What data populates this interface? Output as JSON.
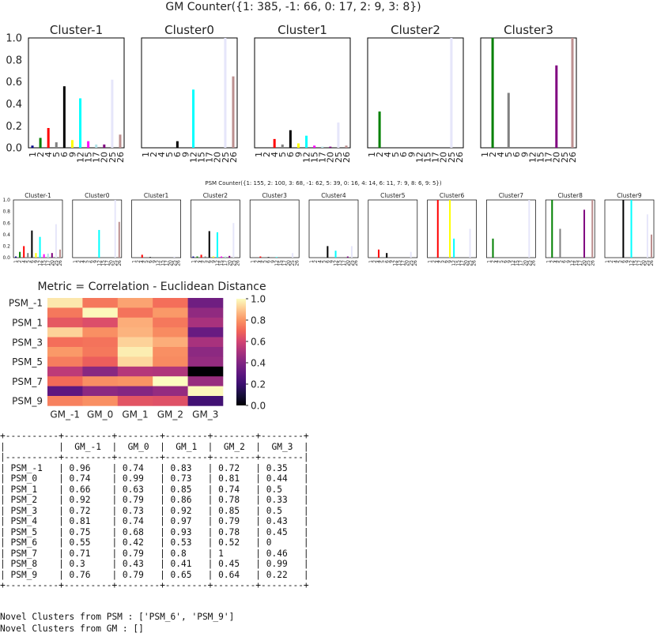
{
  "chart_data": [
    {
      "type": "bar",
      "title": "GM Counter({1: 385, -1: 66, 0: 17, 2: 9, 3: 8})",
      "categories": [
        "1",
        "2",
        "4",
        "5",
        "6",
        "9",
        "12",
        "15",
        "17",
        "20",
        "25",
        "26"
      ],
      "yticks": [
        "0.0",
        "0.2",
        "0.4",
        "0.6",
        "0.8",
        "1.0"
      ],
      "ylim": [
        0,
        1
      ],
      "panels": [
        {
          "title": "Cluster-1",
          "values": [
            0.02,
            0.09,
            0.18,
            0.05,
            0.56,
            0.07,
            0.45,
            0.06,
            0.03,
            0.03,
            0.62,
            0.12
          ]
        },
        {
          "title": "Cluster0",
          "values": [
            0,
            0,
            0,
            0,
            0.06,
            0,
            0.53,
            0,
            0,
            0,
            1.0,
            0.65
          ]
        },
        {
          "title": "Cluster1",
          "values": [
            0,
            0,
            0.08,
            0.03,
            0.16,
            0.04,
            0.11,
            0.02,
            0.01,
            0.01,
            0.23,
            0.02
          ]
        },
        {
          "title": "Cluster2",
          "values": [
            0,
            0.33,
            0,
            0,
            0,
            0,
            0,
            0,
            0,
            0,
            1.0,
            0
          ]
        },
        {
          "title": "Cluster3",
          "values": [
            0,
            1.0,
            0,
            0.5,
            0,
            0,
            0,
            0,
            0,
            0.75,
            0,
            1.0
          ]
        }
      ]
    },
    {
      "type": "bar",
      "title": "PSM Counter({1: 155, 2: 100, 3: 68, -1: 62, 5: 39, 0: 16, 4: 14, 6: 11, 7: 9, 8: 6, 9: 5})",
      "categories": [
        "1",
        "2",
        "4",
        "5",
        "6",
        "9",
        "12",
        "15",
        "17",
        "20",
        "25",
        "26"
      ],
      "yticks": [
        "0.0",
        "0.2",
        "0.4",
        "0.6",
        "0.8",
        "1.0"
      ],
      "ylim": [
        0,
        1
      ],
      "panels": [
        {
          "title": "Cluster-1",
          "values": [
            0.02,
            0.1,
            0.2,
            0.08,
            0.47,
            0.08,
            0.36,
            0.06,
            0.07,
            0.08,
            0.58,
            0.14
          ]
        },
        {
          "title": "Cluster0",
          "values": [
            0,
            0,
            0,
            0,
            0,
            0,
            0.48,
            0,
            0,
            0,
            1.0,
            0.62
          ]
        },
        {
          "title": "Cluster1",
          "values": [
            0,
            0,
            0.05,
            0,
            0.01,
            0,
            0,
            0,
            0,
            0,
            0.02,
            0
          ]
        },
        {
          "title": "Cluster2",
          "values": [
            0.02,
            0.02,
            0.05,
            0.02,
            0.46,
            0.02,
            0.44,
            0.02,
            0.02,
            0.03,
            0.6,
            0
          ]
        },
        {
          "title": "Cluster3",
          "values": [
            0,
            0,
            0.02,
            0,
            0.01,
            0,
            0.01,
            0,
            0,
            0,
            0.08,
            0
          ]
        },
        {
          "title": "Cluster4",
          "values": [
            0,
            0,
            0,
            0,
            0.2,
            0,
            0.12,
            0,
            0,
            0.02,
            0.2,
            0
          ]
        },
        {
          "title": "Cluster5",
          "values": [
            0,
            0,
            0.14,
            0,
            0.08,
            0,
            0,
            0,
            0,
            0,
            0.1,
            0
          ]
        },
        {
          "title": "Cluster6",
          "values": [
            0,
            0,
            1.0,
            0,
            0,
            1.0,
            0.33,
            0,
            0,
            0,
            0.5,
            0
          ]
        },
        {
          "title": "Cluster7",
          "values": [
            0,
            0.33,
            0,
            0,
            0,
            0,
            0,
            0,
            0,
            0,
            1.0,
            0
          ]
        },
        {
          "title": "Cluster8",
          "values": [
            0,
            1.0,
            0,
            0.5,
            0,
            0,
            0,
            0,
            0,
            0.83,
            0,
            1.0
          ]
        },
        {
          "title": "Cluster9",
          "values": [
            0,
            0,
            0,
            0,
            1.0,
            0,
            1.0,
            0,
            0,
            0,
            0.75,
            0.4
          ]
        }
      ]
    },
    {
      "type": "heatmap",
      "title": "Metric = Correlation - Euclidean Distance",
      "xlabels": [
        "GM_-1",
        "GM_0",
        "GM_1",
        "GM_2",
        "GM_3"
      ],
      "ylabels": [
        "PSM_-1",
        "PSM_0",
        "PSM_1",
        "PSM_2",
        "PSM_3",
        "PSM_4",
        "PSM_5",
        "PSM_6",
        "PSM_7",
        "PSM_8",
        "PSM_9"
      ],
      "ytick_labels_shown": [
        "PSM_-1",
        "PSM_1",
        "PSM_3",
        "PSM_5",
        "PSM_7",
        "PSM_9"
      ],
      "colorbar_ticks": [
        "0.0",
        "0.2",
        "0.4",
        "0.6",
        "0.8",
        "1.0"
      ],
      "vmin": 0,
      "vmax": 1,
      "values": [
        [
          0.96,
          0.74,
          0.83,
          0.72,
          0.35
        ],
        [
          0.74,
          0.99,
          0.73,
          0.81,
          0.44
        ],
        [
          0.66,
          0.63,
          0.85,
          0.74,
          0.5
        ],
        [
          0.92,
          0.79,
          0.86,
          0.78,
          0.33
        ],
        [
          0.72,
          0.73,
          0.92,
          0.85,
          0.5
        ],
        [
          0.81,
          0.74,
          0.97,
          0.79,
          0.43
        ],
        [
          0.75,
          0.68,
          0.93,
          0.78,
          0.45
        ],
        [
          0.55,
          0.42,
          0.53,
          0.52,
          0
        ],
        [
          0.71,
          0.79,
          0.8,
          1,
          0.46
        ],
        [
          0.3,
          0.43,
          0.41,
          0.45,
          0.99
        ],
        [
          0.76,
          0.79,
          0.65,
          0.64,
          0.22
        ]
      ]
    }
  ],
  "colors": [
    "#00008b",
    "#008000",
    "#ff0000",
    "#808080",
    "#000000",
    "#ffff00",
    "#00ffff",
    "#ff00ff",
    "#b0e0e6",
    "#800080",
    "#e6e6fa",
    "#bc8f8f"
  ],
  "table": {
    "headers": [
      "",
      "GM_-1",
      "GM_0",
      "GM_1",
      "GM_2",
      "GM_3"
    ],
    "rows": [
      [
        "PSM_-1",
        "0.96",
        "0.74",
        "0.83",
        "0.72",
        "0.35"
      ],
      [
        "PSM_0",
        "0.74",
        "0.99",
        "0.73",
        "0.81",
        "0.44"
      ],
      [
        "PSM_1",
        "0.66",
        "0.63",
        "0.85",
        "0.74",
        "0.5"
      ],
      [
        "PSM_2",
        "0.92",
        "0.79",
        "0.86",
        "0.78",
        "0.33"
      ],
      [
        "PSM_3",
        "0.72",
        "0.73",
        "0.92",
        "0.85",
        "0.5"
      ],
      [
        "PSM_4",
        "0.81",
        "0.74",
        "0.97",
        "0.79",
        "0.43"
      ],
      [
        "PSM_5",
        "0.75",
        "0.68",
        "0.93",
        "0.78",
        "0.45"
      ],
      [
        "PSM_6",
        "0.55",
        "0.42",
        "0.53",
        "0.52",
        "0"
      ],
      [
        "PSM_7",
        "0.71",
        "0.79",
        "0.8",
        "1",
        "0.46"
      ],
      [
        "PSM_8",
        "0.3",
        "0.43",
        "0.41",
        "0.45",
        "0.99"
      ],
      [
        "PSM_9",
        "0.76",
        "0.79",
        "0.65",
        "0.64",
        "0.22"
      ]
    ]
  },
  "novel": {
    "psm": "Novel Clusters from PSM : ['PSM_6', 'PSM_9']",
    "gm": "Novel Clusters from GM : []"
  }
}
